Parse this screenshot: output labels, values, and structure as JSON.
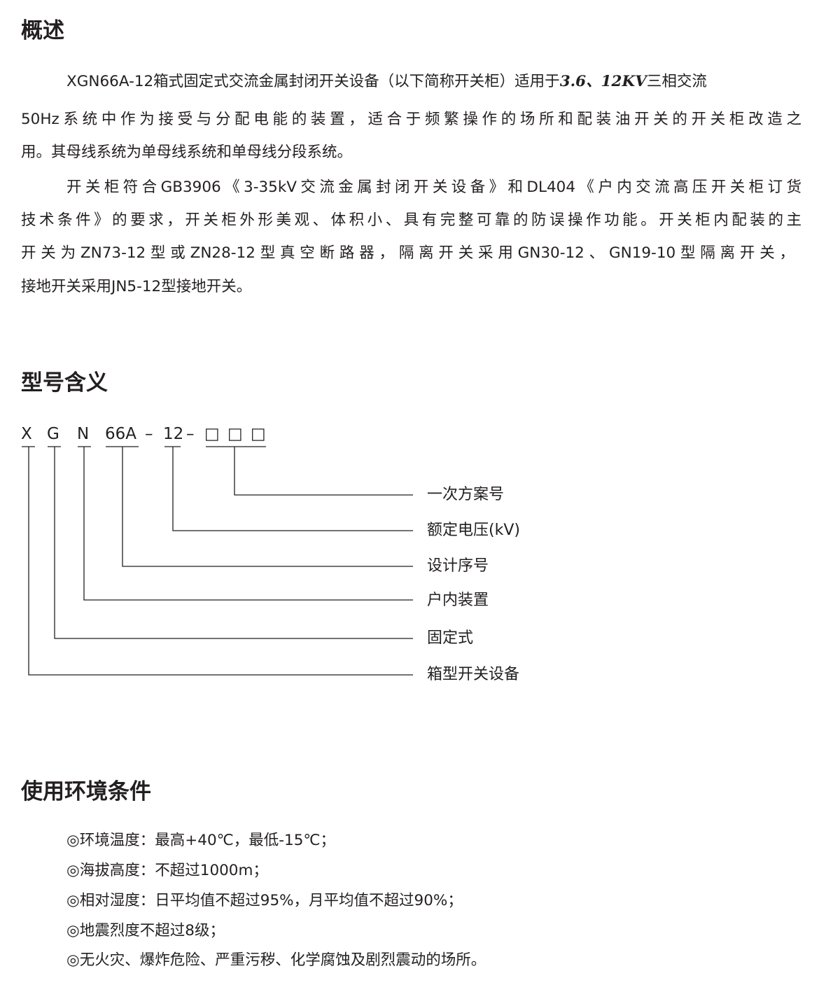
{
  "overview": {
    "title": "概述",
    "lines": [
      "XGN66A-12箱式固定式交流金属封闭开关设备（以下简称开关柜）适用于",
      "3.6、12KV",
      "三相交流",
      "50Hz系统中作为接受与分配电能的装置，适合于频繁操作的场所和配装油开关的开关柜改造之",
      "用。其母线系统为单母线系统和单母线分段系统。",
      "开关柜符合GB3906《3-35kV交流金属封闭开关设备》和DL404《户内交流高压开关柜订货",
      "技术条件》的要求，开关柜外形美观、体积小、具有完整可靠的防误操作功能。开关柜内配装的主",
      "开关为ZN73-12型或ZN28-12型真空断路器，隔离开关采用GN30-12、GN19-10型隔离开关，",
      "接地开关采用JN5-12型接地开关。"
    ]
  },
  "model": {
    "title": "型号含义",
    "code": [
      "X",
      "G",
      "N",
      "66A",
      "–",
      "12",
      "–",
      "□",
      "□",
      "□"
    ],
    "labels": [
      "一次方案号",
      "额定电压(kV)",
      "设计序号",
      "户内装置",
      "固定式",
      "箱型开关设备"
    ]
  },
  "env": {
    "title": "使用环境条件",
    "items": [
      "◎环境温度：最高+40℃，最低-15℃；",
      "◎海拔高度：不超过1000m；",
      "◎相对湿度：日平均值不超过95%，月平均值不超过90%；",
      "◎地震烈度不超过8级；",
      "◎无火灾、爆炸危险、严重污秽、化学腐蚀及剧烈震动的场所。"
    ]
  }
}
